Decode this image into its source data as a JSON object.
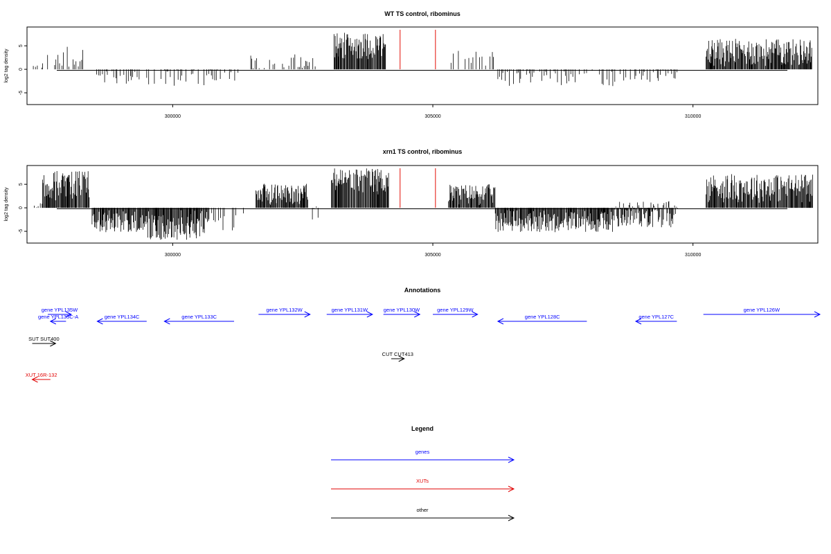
{
  "chart_data": [
    {
      "type": "bar",
      "title": "WT TS control, ribominus",
      "ylabel": "log2 tag density",
      "xlim": [
        297200,
        312400
      ],
      "ylim": [
        -7.5,
        9
      ],
      "x_ticks": [
        300000,
        305000,
        310000
      ],
      "x_tick_labels": [
        "300000",
        "305000",
        "310000"
      ],
      "y_ticks": [
        -5,
        0,
        5
      ],
      "y_tick_labels": [
        "-5",
        "0",
        "5"
      ],
      "markers": [
        304370,
        305050
      ],
      "marker_color": "#e8352e",
      "segments": [
        {
          "start": 297300,
          "end": 297500,
          "min": -0.4,
          "max": 1.2
        },
        {
          "start": 297500,
          "end": 297900,
          "min": 0.3,
          "max": 4.5
        },
        {
          "start": 297900,
          "end": 298300,
          "min": 0.5,
          "max": 5.0
        },
        {
          "start": 298450,
          "end": 299400,
          "min": -3.2,
          "max": -0.3
        },
        {
          "start": 299500,
          "end": 300500,
          "min": -3.6,
          "max": -0.2
        },
        {
          "start": 300600,
          "end": 301300,
          "min": -3.4,
          "max": -0.3
        },
        {
          "start": 301500,
          "end": 302800,
          "min": 0.2,
          "max": 3.5
        },
        {
          "start": 303100,
          "end": 304100,
          "min": 2.0,
          "max": 7.8
        },
        {
          "start": 305350,
          "end": 306200,
          "min": 0.3,
          "max": 4.0
        },
        {
          "start": 306250,
          "end": 308500,
          "min": -3.6,
          "max": -0.3
        },
        {
          "start": 308600,
          "end": 309700,
          "min": -3.0,
          "max": -0.3
        },
        {
          "start": 310250,
          "end": 312300,
          "min": 0.5,
          "max": 6.5
        }
      ]
    },
    {
      "type": "bar",
      "title": "xrn1 TS control, ribominus",
      "ylabel": "log2 tag density",
      "xlim": [
        297200,
        312400
      ],
      "ylim": [
        -7.5,
        9
      ],
      "x_ticks": [
        300000,
        305000,
        310000
      ],
      "x_tick_labels": [
        "300000",
        "305000",
        "310000"
      ],
      "y_ticks": [
        -5,
        0,
        5
      ],
      "y_tick_labels": [
        "-5",
        "0",
        "5"
      ],
      "markers": [
        304370,
        305050
      ],
      "marker_color": "#e8352e",
      "segments": [
        {
          "start": 297300,
          "end": 297500,
          "min": -0.3,
          "max": 1.0
        },
        {
          "start": 297500,
          "end": 298400,
          "min": 1.5,
          "max": 8.0
        },
        {
          "start": 298450,
          "end": 299500,
          "min": -5.2,
          "max": -0.5
        },
        {
          "start": 299500,
          "end": 300700,
          "min": -6.8,
          "max": -0.5
        },
        {
          "start": 300700,
          "end": 301400,
          "min": -5.0,
          "max": -0.5
        },
        {
          "start": 301600,
          "end": 302600,
          "min": 0.5,
          "max": 5.2
        },
        {
          "start": 302600,
          "end": 302800,
          "min": -2.5,
          "max": 0.5
        },
        {
          "start": 303050,
          "end": 304150,
          "min": 2.5,
          "max": 8.5
        },
        {
          "start": 305300,
          "end": 306200,
          "min": 0.5,
          "max": 5.0
        },
        {
          "start": 306200,
          "end": 308500,
          "min": -5.2,
          "max": -0.5
        },
        {
          "start": 308500,
          "end": 309700,
          "min": -4.2,
          "max": 1.5
        },
        {
          "start": 310250,
          "end": 312300,
          "min": 1.0,
          "max": 7.2
        }
      ]
    }
  ],
  "annotations": {
    "title": "Annotations",
    "xlim": [
      297200,
      312400
    ],
    "items": [
      {
        "label": "gene YPL135W",
        "start": 297600,
        "end": 298050,
        "strand": "+",
        "row": 0,
        "color": "#0000ff"
      },
      {
        "label": "gene YPL135C-A",
        "start": 297650,
        "end": 297950,
        "strand": "-",
        "row": 1,
        "color": "#0000ff"
      },
      {
        "label": "gene YPL134C",
        "start": 298550,
        "end": 299500,
        "strand": "-",
        "row": 1,
        "color": "#0000ff"
      },
      {
        "label": "gene YPL133C",
        "start": 299840,
        "end": 301180,
        "strand": "-",
        "row": 1,
        "color": "#0000ff"
      },
      {
        "label": "gene YPL132W",
        "start": 301650,
        "end": 302640,
        "strand": "+",
        "row": 0,
        "color": "#0000ff"
      },
      {
        "label": "gene YPL131W",
        "start": 302960,
        "end": 303840,
        "strand": "+",
        "row": 0,
        "color": "#0000ff"
      },
      {
        "label": "gene YPL130W",
        "start": 304050,
        "end": 304750,
        "strand": "+",
        "row": 0,
        "color": "#0000ff"
      },
      {
        "label": "gene YPL129W",
        "start": 305000,
        "end": 305860,
        "strand": "+",
        "row": 0,
        "color": "#0000ff"
      },
      {
        "label": "gene YPL128C",
        "start": 306250,
        "end": 307960,
        "strand": "-",
        "row": 1,
        "color": "#0000ff"
      },
      {
        "label": "gene YPL127C",
        "start": 308900,
        "end": 309690,
        "strand": "-",
        "row": 1,
        "color": "#0000ff"
      },
      {
        "label": "gene YPL126W",
        "start": 310200,
        "end": 312500,
        "strand": "+",
        "row": 0,
        "color": "#0000ff"
      },
      {
        "label": "SUT SUT400",
        "start": 297300,
        "end": 297750,
        "strand": "+",
        "row": 2,
        "color": "#000000"
      },
      {
        "label": "CUT CUT413",
        "start": 304200,
        "end": 304450,
        "strand": "+",
        "row": 3,
        "color": "#000000"
      },
      {
        "label": "XUT 16R-132",
        "start": 297300,
        "end": 297650,
        "strand": "-",
        "row": 4,
        "color": "#e00000"
      }
    ]
  },
  "legend": {
    "title": "Legend",
    "items": [
      {
        "label": "genes",
        "color": "#0000ff"
      },
      {
        "label": "XUTs",
        "color": "#e00000"
      },
      {
        "label": "other",
        "color": "#000000"
      }
    ]
  }
}
